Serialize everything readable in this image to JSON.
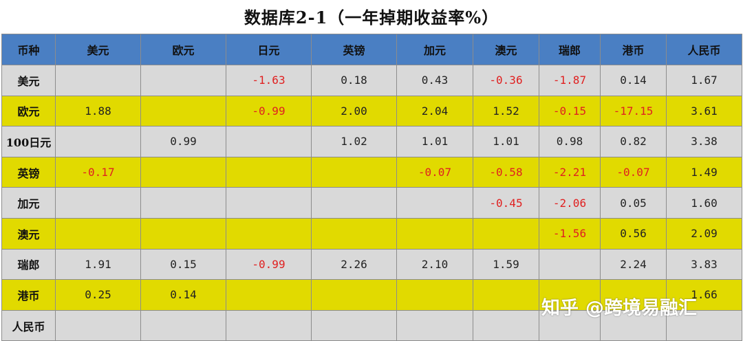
{
  "title": "数据库2-1（一年掉期收益率%）",
  "header": [
    "币种",
    "美元",
    "欧元",
    "日元",
    "英镑",
    "加元",
    "澳元",
    "瑞郎",
    "港币",
    "人民币"
  ],
  "rows": [
    {
      "label": "美元",
      "style": "gray",
      "cells": [
        "",
        "",
        "-1.63",
        "0.18",
        "0.43",
        "-0.36",
        "-1.87",
        "0.14",
        "1.67"
      ]
    },
    {
      "label": "欧元",
      "style": "yellow",
      "cells": [
        "1.88",
        "",
        "-0.99",
        "2.00",
        "2.04",
        "1.52",
        "-0.15",
        "-17.15",
        "3.61"
      ]
    },
    {
      "label": "100日元",
      "style": "gray",
      "cells": [
        "",
        "0.99",
        "",
        "1.02",
        "1.01",
        "1.01",
        "0.98",
        "0.82",
        "3.38"
      ]
    },
    {
      "label": "英镑",
      "style": "yellow",
      "cells": [
        "-0.17",
        "",
        "",
        "",
        "-0.07",
        "-0.58",
        "-2.21",
        "-0.07",
        "1.49"
      ]
    },
    {
      "label": "加元",
      "style": "gray",
      "cells": [
        "",
        "",
        "",
        "",
        "",
        "-0.45",
        "-2.06",
        "0.05",
        "1.60"
      ]
    },
    {
      "label": "澳元",
      "style": "yellow",
      "cells": [
        "",
        "",
        "",
        "",
        "",
        "",
        "-1.56",
        "0.56",
        "2.09"
      ]
    },
    {
      "label": "瑞郎",
      "style": "gray",
      "cells": [
        "1.91",
        "0.15",
        "-0.99",
        "2.26",
        "2.10",
        "1.59",
        "",
        "2.24",
        "3.83"
      ]
    },
    {
      "label": "港币",
      "style": "yellow",
      "cells": [
        "0.25",
        "0.14",
        "",
        "",
        "",
        "",
        "",
        "",
        "1.66"
      ]
    },
    {
      "label": "人民币",
      "style": "gray",
      "cells": [
        "",
        "",
        "",
        "",
        "",
        "",
        "",
        "",
        ""
      ]
    }
  ],
  "watermark": {
    "site": "知乎",
    "account": "@跨境易融汇"
  },
  "colors": {
    "header_bg": "#4a7fc3",
    "row_gray": "#d9d9d9",
    "row_yellow": "#e1da00",
    "negative": "#e02020"
  }
}
